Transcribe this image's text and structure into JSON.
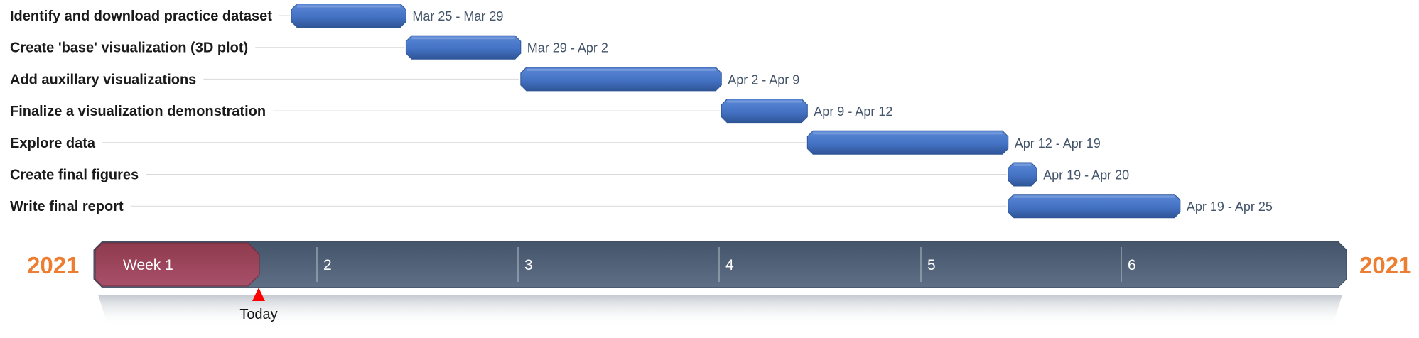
{
  "colors": {
    "bar": "#4472c4",
    "bar_top": "#5b88d6",
    "bar_dark": "#2f5597",
    "timeline": "#44546a",
    "timeline_light": "#5e6f86",
    "current_week": "#8f3a4d",
    "year": "#ed7d31",
    "today_marker": "#ff0000"
  },
  "chart_data": {
    "type": "gantt",
    "year_left": "2021",
    "year_right": "2021",
    "today_label": "Today",
    "tasks": [
      {
        "name": "Identify and download practice dataset",
        "start": "Mar 25",
        "end": "Mar 29",
        "range_label": "Mar 25 - Mar 29"
      },
      {
        "name": "Create 'base' visualization (3D plot)",
        "start": "Mar 29",
        "end": "Apr 2",
        "range_label": "Mar 29 - Apr 2"
      },
      {
        "name": "Add auxillary visualizations",
        "start": "Apr 2",
        "end": "Apr 9",
        "range_label": "Apr 2 - Apr 9"
      },
      {
        "name": "Finalize a visualization demonstration",
        "start": "Apr 9",
        "end": "Apr 12",
        "range_label": "Apr 9 - Apr 12"
      },
      {
        "name": "Explore data",
        "start": "Apr 12",
        "end": "Apr 19",
        "range_label": "Apr 12 - Apr 19"
      },
      {
        "name": "Create final figures",
        "start": "Apr 19",
        "end": "Apr 20",
        "range_label": "Apr 19 - Apr 20"
      },
      {
        "name": "Write final report",
        "start": "Apr 19",
        "end": "Apr 25",
        "range_label": "Apr 19 - Apr 25"
      }
    ],
    "weeks": [
      "Week 1",
      "2",
      "3",
      "4",
      "5",
      "6"
    ],
    "current_week": "Week 1"
  }
}
